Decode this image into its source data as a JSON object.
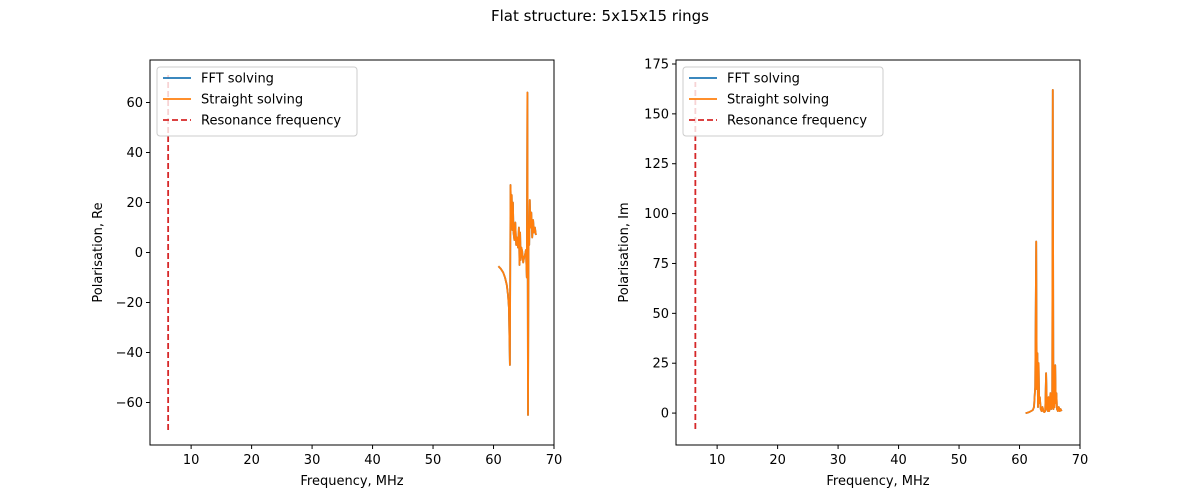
{
  "figure": {
    "title": "Flat structure: 5x15x15 rings"
  },
  "colors": {
    "fft": "#1f77b4",
    "straight": "#ff7f0e",
    "resonance": "#d62728"
  },
  "chart_data": [
    {
      "type": "line",
      "xlabel": "Frequency, MHz",
      "ylabel": "Polarisation, Re",
      "xlim": [
        3.2,
        70
      ],
      "ylim": [
        -77,
        77
      ],
      "xticks": [
        10,
        20,
        30,
        40,
        50,
        60,
        70
      ],
      "yticks": [
        -60,
        -40,
        -20,
        0,
        20,
        40,
        60
      ],
      "grid": false,
      "legend_position": "upper-left",
      "legend": [
        "FFT solving",
        "Straight solving",
        "Resonance frequency"
      ],
      "resonance_frequency": 6.2,
      "resonance_range": [
        -71,
        71
      ],
      "series": [
        {
          "name": "FFT solving",
          "color": "#1f77b4",
          "x": [
            60.8,
            61.2,
            61.6,
            61.9,
            62.2,
            62.4,
            62.55,
            62.7,
            62.8,
            62.9,
            63.0,
            63.1,
            63.2,
            63.3,
            63.45,
            63.6,
            63.75,
            63.9,
            64.05,
            64.2,
            64.3,
            64.4,
            64.5,
            64.6,
            64.75,
            64.9,
            65.05,
            65.2,
            65.35,
            65.5,
            65.6,
            65.7,
            65.8,
            65.9,
            66.0,
            66.1,
            66.25,
            66.4,
            66.55,
            66.7,
            66.85,
            67.0
          ],
          "y": [
            -5.5,
            -6.5,
            -8,
            -10,
            -13,
            -17,
            -22,
            -45,
            27,
            16,
            23,
            9,
            20,
            8,
            5,
            12,
            3,
            6,
            2,
            10,
            -5,
            8,
            -3,
            2,
            0.5,
            -4,
            -2,
            -1,
            1,
            -10,
            64,
            -65,
            8,
            3,
            21,
            10,
            16,
            6,
            13,
            8,
            10,
            7
          ]
        },
        {
          "name": "Straight solving",
          "color": "#ff7f0e",
          "x": [
            60.8,
            61.2,
            61.6,
            61.9,
            62.2,
            62.4,
            62.55,
            62.7,
            62.8,
            62.9,
            63.0,
            63.1,
            63.2,
            63.3,
            63.45,
            63.6,
            63.75,
            63.9,
            64.05,
            64.2,
            64.3,
            64.4,
            64.5,
            64.6,
            64.75,
            64.9,
            65.05,
            65.2,
            65.35,
            65.5,
            65.6,
            65.7,
            65.8,
            65.9,
            66.0,
            66.1,
            66.25,
            66.4,
            66.55,
            66.7,
            66.85,
            67.0
          ],
          "y": [
            -5.5,
            -6.5,
            -8,
            -10,
            -13,
            -17,
            -22,
            -45,
            27,
            16,
            23,
            9,
            20,
            8,
            5,
            12,
            3,
            6,
            2,
            10,
            -5,
            8,
            -3,
            2,
            0.5,
            -4,
            -2,
            -1,
            1,
            -10,
            64,
            -65,
            8,
            3,
            21,
            10,
            16,
            6,
            13,
            8,
            10,
            7
          ]
        }
      ]
    },
    {
      "type": "line",
      "xlabel": "Frequency, MHz",
      "ylabel": "Polarisation, Im",
      "xlim": [
        3.2,
        70
      ],
      "ylim": [
        -16,
        177
      ],
      "xticks": [
        10,
        20,
        30,
        40,
        50,
        60,
        70
      ],
      "yticks": [
        0,
        25,
        50,
        75,
        100,
        125,
        150,
        175
      ],
      "grid": false,
      "legend_position": "upper-left",
      "legend": [
        "FFT solving",
        "Straight solving",
        "Resonance frequency"
      ],
      "resonance_frequency": 6.4,
      "resonance_range": [
        -8,
        166
      ],
      "series": [
        {
          "name": "FFT solving",
          "color": "#1f77b4",
          "x": [
            61.0,
            61.3,
            61.6,
            61.9,
            62.2,
            62.4,
            62.6,
            62.75,
            62.85,
            62.95,
            63.05,
            63.15,
            63.25,
            63.35,
            63.5,
            63.65,
            63.8,
            63.95,
            64.1,
            64.25,
            64.4,
            64.55,
            64.7,
            64.8,
            64.9,
            65.0,
            65.1,
            65.25,
            65.4,
            65.5,
            65.6,
            65.7,
            65.8,
            65.9,
            66.0,
            66.1,
            66.2,
            66.35,
            66.5,
            66.65,
            66.8,
            66.95
          ],
          "y": [
            0,
            0.2,
            0.5,
            1,
            1.5,
            3,
            13,
            86,
            12,
            30,
            3,
            25,
            5,
            8,
            2,
            1,
            3,
            1,
            0.5,
            1,
            20,
            2,
            1,
            8,
            1,
            3,
            10,
            2,
            5,
            162,
            2,
            9,
            3,
            24,
            5,
            10,
            2,
            1,
            3,
            1,
            2,
            1
          ]
        },
        {
          "name": "Straight solving",
          "color": "#ff7f0e",
          "x": [
            61.0,
            61.3,
            61.6,
            61.9,
            62.2,
            62.4,
            62.6,
            62.75,
            62.85,
            62.95,
            63.05,
            63.15,
            63.25,
            63.35,
            63.5,
            63.65,
            63.8,
            63.95,
            64.1,
            64.25,
            64.4,
            64.55,
            64.7,
            64.8,
            64.9,
            65.0,
            65.1,
            65.25,
            65.4,
            65.5,
            65.6,
            65.7,
            65.8,
            65.9,
            66.0,
            66.1,
            66.2,
            66.35,
            66.5,
            66.65,
            66.8,
            66.95
          ],
          "y": [
            0,
            0.2,
            0.5,
            1,
            1.5,
            3,
            13,
            86,
            12,
            30,
            3,
            25,
            5,
            8,
            2,
            1,
            3,
            1,
            0.5,
            1,
            20,
            2,
            1,
            8,
            1,
            3,
            10,
            2,
            5,
            162,
            2,
            9,
            3,
            24,
            5,
            10,
            2,
            1,
            3,
            1,
            2,
            1
          ]
        }
      ]
    }
  ]
}
